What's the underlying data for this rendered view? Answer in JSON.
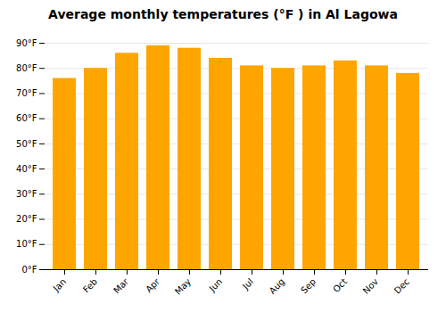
{
  "chart_data": {
    "type": "bar",
    "title": "Average monthly temperatures (°F ) in Al Lagowa",
    "categories": [
      "Jan",
      "Feb",
      "Mar",
      "Apr",
      "May",
      "Jun",
      "Jul",
      "Aug",
      "Sep",
      "Oct",
      "Nov",
      "Dec"
    ],
    "values": [
      76,
      80,
      86,
      89,
      88,
      84,
      81,
      80,
      81,
      83,
      81,
      78
    ],
    "color": "#FFA500",
    "ylim": [
      0,
      90
    ],
    "yticks": [
      {
        "value": 0,
        "label": "0°F"
      },
      {
        "value": 10,
        "label": "10°F"
      },
      {
        "value": 20,
        "label": "20°F"
      },
      {
        "value": 30,
        "label": "30°F"
      },
      {
        "value": 40,
        "label": "40°F"
      },
      {
        "value": 50,
        "label": "50°F"
      },
      {
        "value": 60,
        "label": "60°F"
      },
      {
        "value": 70,
        "label": "70°F"
      },
      {
        "value": 80,
        "label": "80°F"
      },
      {
        "value": 90,
        "label": "90°F"
      }
    ],
    "grid": true
  }
}
